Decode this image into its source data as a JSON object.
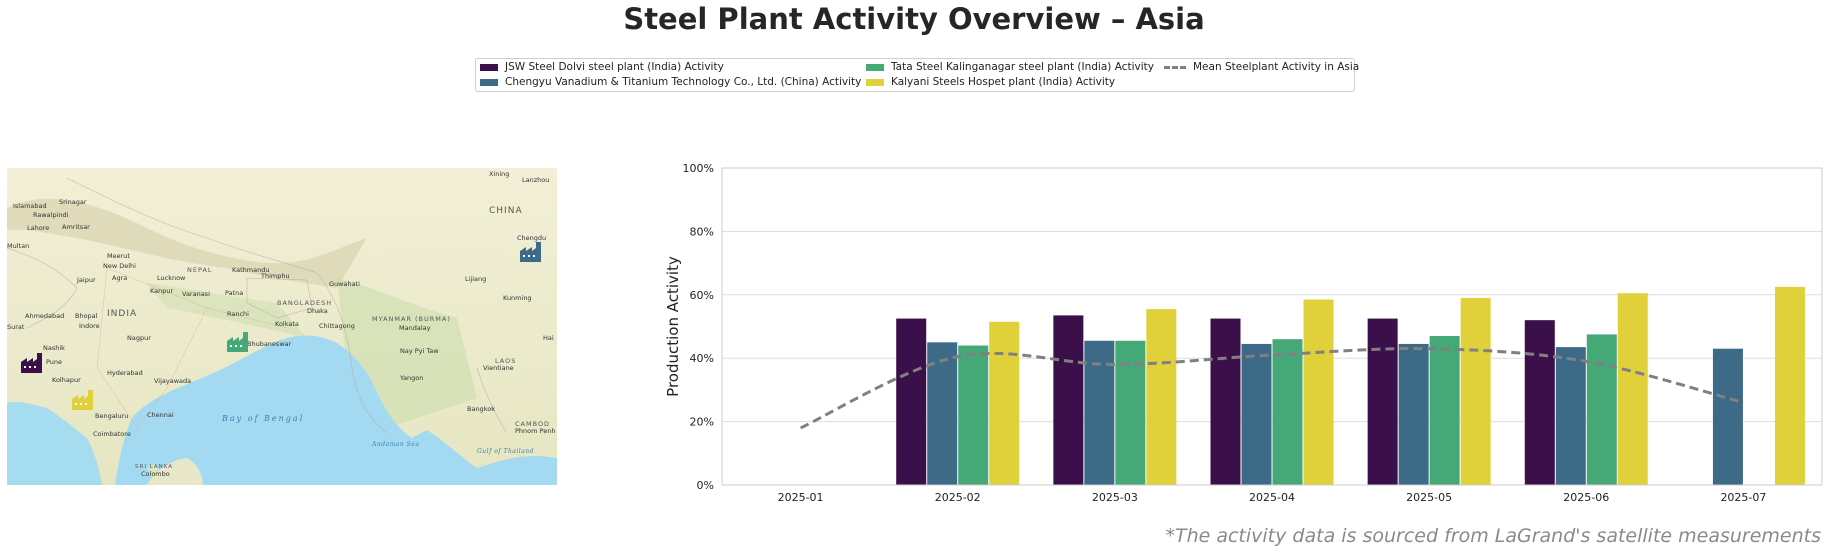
{
  "title": "Steel Plant Activity Overview – Asia",
  "footnote": "*The activity data is sourced from LaGrand's satellite measurements",
  "legend": {
    "items": [
      {
        "label": "JSW Steel Dolvi steel plant (India) Activity",
        "color": "#3b0f4a",
        "kind": "bar"
      },
      {
        "label": "Chengyu Vanadium & Titanium Technology Co., Ltd. (China) Activity",
        "color": "#3d6a87",
        "kind": "bar"
      },
      {
        "label": "Tata Steel Kalinganagar steel plant (India) Activity",
        "color": "#45a877",
        "kind": "bar"
      },
      {
        "label": "Kalyani Steels Hospet plant (India) Activity",
        "color": "#e0d13b",
        "kind": "bar"
      },
      {
        "label": "Mean Steelplant Activity in Asia",
        "color": "#808080",
        "kind": "line"
      }
    ]
  },
  "map": {
    "labels": {
      "china": "CHINA",
      "india": "INDIA",
      "nepal": "NEPAL",
      "bangladesh": "BANGLADESH",
      "myanmar": "MYANMAR (BURMA)",
      "laos": "LAOS",
      "sea": "Bay of Bengal",
      "andaman": "Andaman Sea",
      "thailand_gulf": "Gulf of Thailand",
      "srilanka": "SRI LANKA",
      "cambodia": "CAMBOD",
      "cities": [
        "Islamabad",
        "Srinagar",
        "Rawalpindi",
        "Lahore",
        "Amritsar",
        "Multan",
        "Meerut",
        "New Delhi",
        "Agra",
        "Jaipur",
        "Lucknow",
        "Kanpur",
        "Varanasi",
        "Patna",
        "Kathmandu",
        "Thimphu",
        "Guwahati",
        "Dhaka",
        "Kolkata",
        "Chittagong",
        "Ranchi",
        "Bhubaneswar",
        "Nagpur",
        "Bhopal",
        "Indore",
        "Ahmedabad",
        "Surat",
        "Nashik",
        "Pune",
        "Kolhapur",
        "Hyderabad",
        "Vijayawada",
        "Bengaluru",
        "Chennai",
        "Coimbatore",
        "Colombo",
        "Mandalay",
        "Nay Pyi Taw",
        "Yangon",
        "Vientiane",
        "Bangkok",
        "Phnom Penh",
        "Lijiang",
        "Kunming",
        "Chengdu",
        "Lanzhou",
        "Xining",
        "Hai"
      ]
    },
    "plant_icons": [
      {
        "name": "jsw-dolvi-plant-icon",
        "color": "#3b0f4a"
      },
      {
        "name": "chengyu-plant-icon",
        "color": "#3d6a87"
      },
      {
        "name": "tata-kalinganagar-plant-icon",
        "color": "#45a877"
      },
      {
        "name": "kalyani-hospet-plant-icon",
        "color": "#e0d13b"
      }
    ]
  },
  "chart_data": {
    "type": "bar",
    "ylabel": "Production Activity",
    "xlabel": "",
    "ylim": [
      0,
      100
    ],
    "yticks": [
      "0%",
      "20%",
      "40%",
      "60%",
      "80%",
      "100%"
    ],
    "ytick_values": [
      0,
      20,
      40,
      60,
      80,
      100
    ],
    "grid": true,
    "legend_position": "top-center",
    "categories": [
      "2025-01",
      "2025-02",
      "2025-03",
      "2025-04",
      "2025-05",
      "2025-06",
      "2025-07"
    ],
    "series": [
      {
        "name": "JSW Steel Dolvi steel plant (India) Activity",
        "color": "#3b0f4a",
        "values": [
          null,
          52.5,
          53.5,
          52.5,
          52.5,
          52.0,
          null
        ]
      },
      {
        "name": "Chengyu Vanadium & Titanium Technology Co., Ltd. (China) Activity",
        "color": "#3d6a87",
        "values": [
          null,
          45.0,
          45.5,
          44.5,
          44.5,
          43.5,
          43.0
        ]
      },
      {
        "name": "Tata Steel Kalinganagar steel plant (India) Activity",
        "color": "#45a877",
        "values": [
          null,
          44.0,
          45.5,
          46.0,
          47.0,
          47.5,
          null
        ]
      },
      {
        "name": "Kalyani Steels Hospet plant (India) Activity",
        "color": "#e0d13b",
        "values": [
          null,
          51.5,
          55.5,
          58.5,
          59.0,
          60.5,
          62.5
        ]
      }
    ],
    "mean_line": {
      "name": "Mean Steelplant Activity in Asia",
      "color": "#808080",
      "values": [
        18.0,
        40.5,
        38.0,
        41.0,
        43.0,
        39.0,
        26.0
      ]
    }
  }
}
